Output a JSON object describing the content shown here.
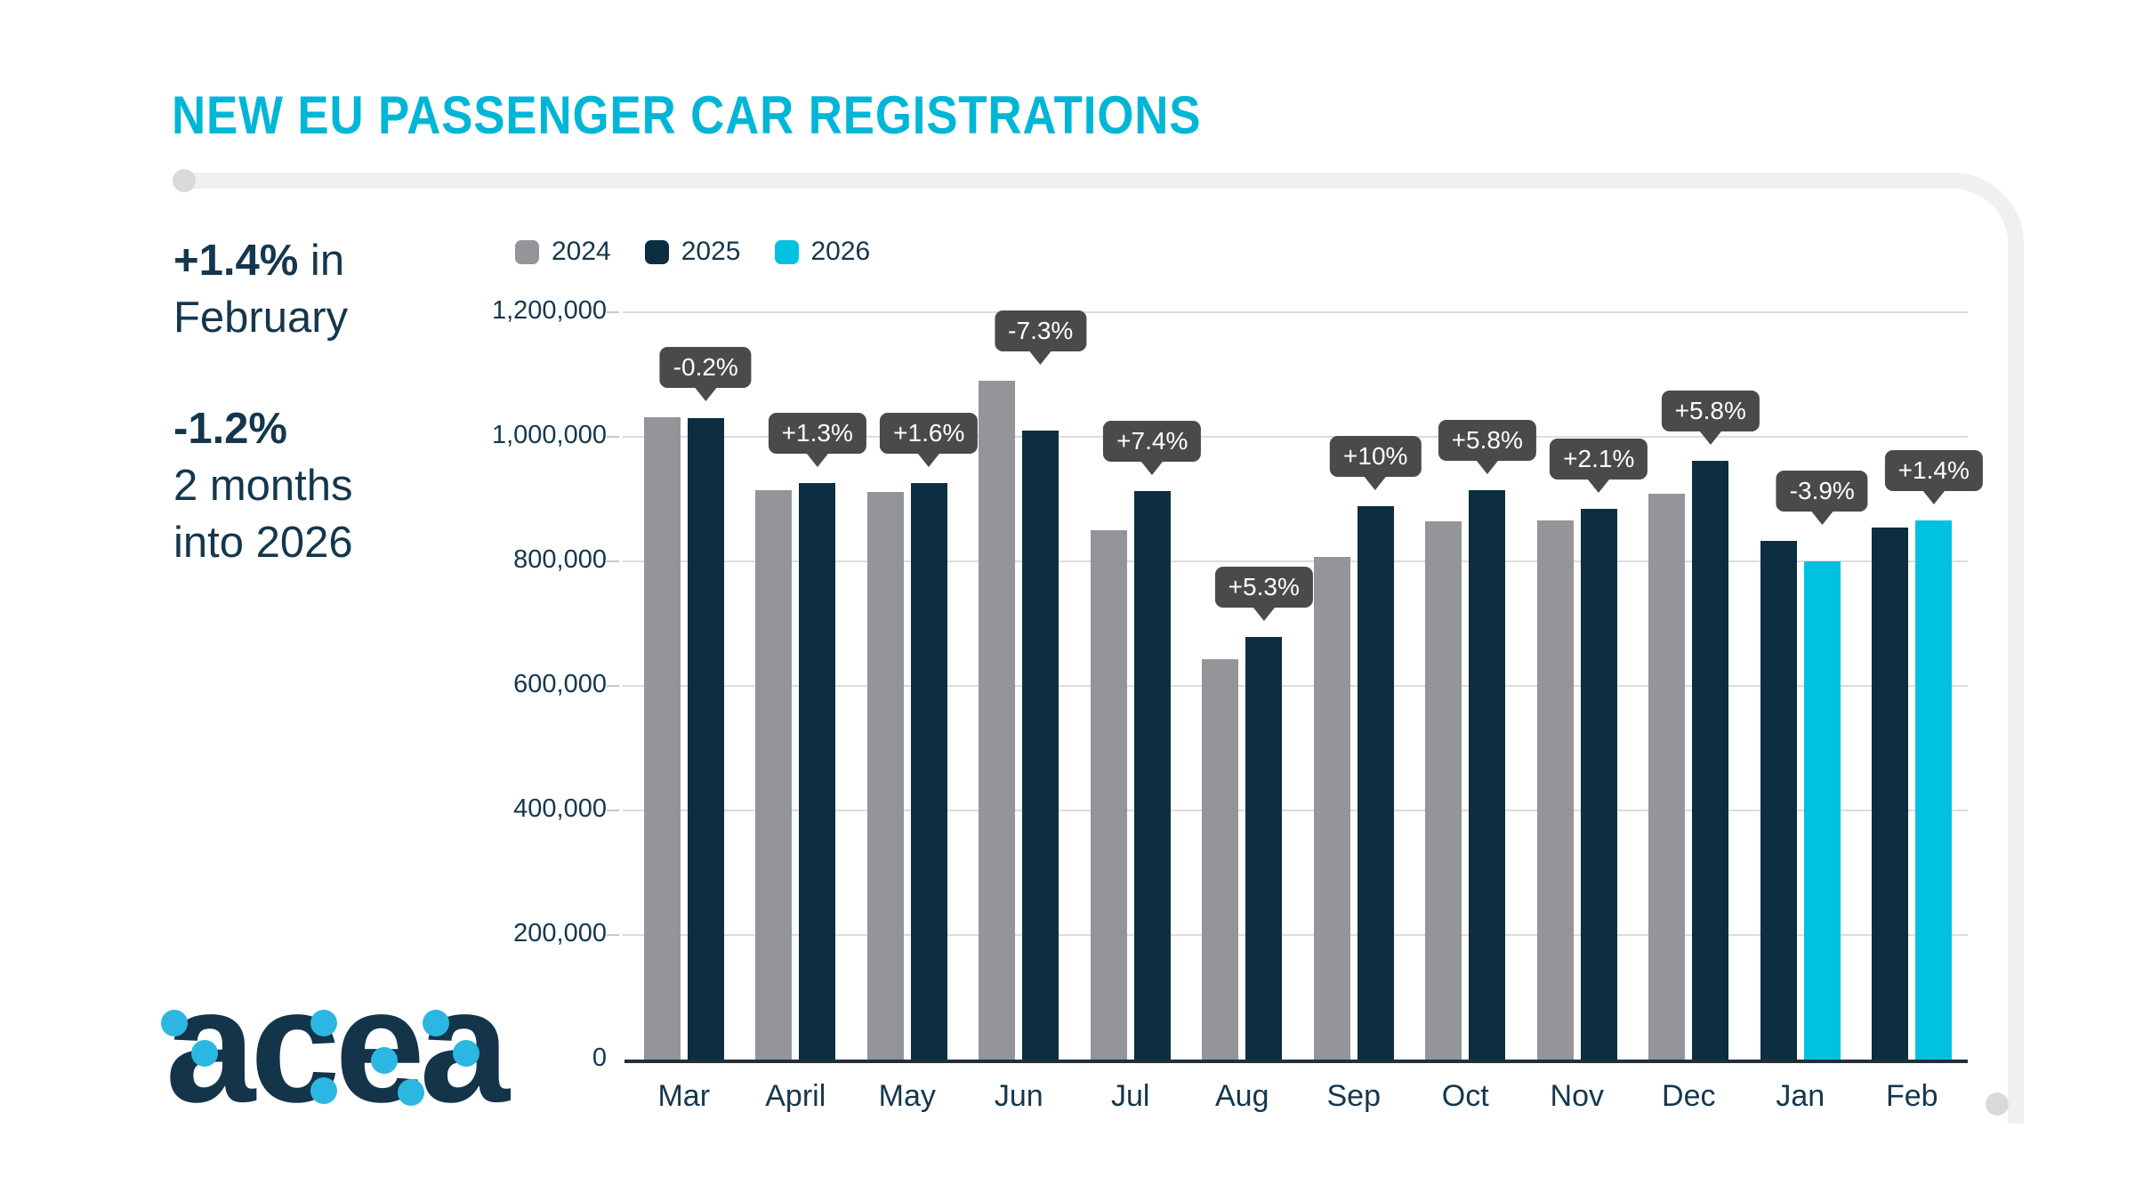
{
  "title": {
    "text": "NEW EU PASSENGER CAR REGISTRATIONS",
    "color": "#00b6d6"
  },
  "stats": [
    {
      "bold": "+1.4%",
      "rest": " in",
      "line2": "February"
    },
    {
      "bold": "-1.2%",
      "rest": "",
      "line2": "2 months",
      "line3": "into 2026"
    }
  ],
  "legend": {
    "items": [
      {
        "label": "2024",
        "color": "#939598"
      },
      {
        "label": "2025",
        "color": "#0d2e40"
      },
      {
        "label": "2026",
        "color": "#00c2e0"
      }
    ]
  },
  "chart_data": {
    "type": "bar",
    "title": "NEW EU PASSENGER CAR REGISTRATIONS",
    "categories": [
      "Mar",
      "April",
      "May",
      "Jun",
      "Jul",
      "Aug",
      "Sep",
      "Oct",
      "Nov",
      "Dec",
      "Jan",
      "Feb"
    ],
    "series": [
      {
        "name": "2024",
        "color": "#939598",
        "values": [
          1032000,
          914000,
          911000,
          1090000,
          850000,
          643000,
          807000,
          865000,
          866000,
          908000,
          null,
          null
        ]
      },
      {
        "name": "2025",
        "color": "#0d2e40",
        "values": [
          1030000,
          926000,
          926000,
          1010000,
          913000,
          678000,
          888000,
          915000,
          884000,
          962000,
          833000,
          854000
        ]
      },
      {
        "name": "2026",
        "color": "#00c2e0",
        "values": [
          null,
          null,
          null,
          null,
          null,
          null,
          null,
          null,
          null,
          null,
          800000,
          866000
        ]
      }
    ],
    "change_labels": [
      "-0.2%",
      "+1.3%",
      "+1.6%",
      "-7.3%",
      "+7.4%",
      "+5.3%",
      "+10%",
      "+5.8%",
      "+2.1%",
      "+5.8%",
      "-3.9%",
      "+1.4%"
    ],
    "y_ticks": [
      "0",
      "200,000",
      "400,000",
      "600,000",
      "800,000",
      "1,000,000",
      "1,200,000"
    ],
    "ylabel": "",
    "xlabel": "",
    "ylim": [
      0,
      1200000
    ],
    "grid": "horizontal",
    "legend_position": "top-left"
  },
  "badge_style": {
    "bg": "#4a4a4a",
    "text_color": "#ffffff"
  },
  "axis_color": "#232f3a",
  "gridline_color": "#dcdcdc",
  "logo": {
    "text": "acea",
    "text_color": "#14344a",
    "dot_color": "#2bb7e2"
  }
}
